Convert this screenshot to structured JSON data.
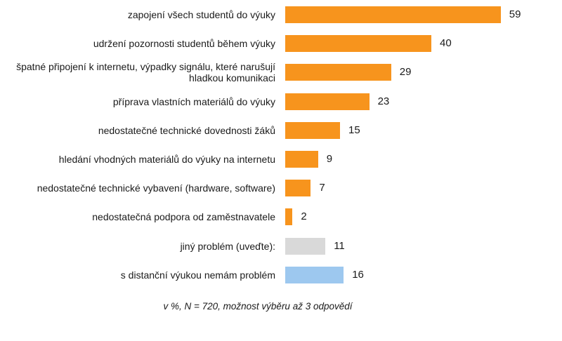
{
  "chart_data": {
    "type": "bar",
    "orientation": "horizontal",
    "categories": [
      "zapojení všech studentů do výuky",
      "udržení pozornosti studentů během výuky",
      "špatné připojení k internetu, výpadky signálu, které narušují hladkou komunikaci",
      "příprava vlastních materiálů do výuky",
      "nedostatečné technické dovednosti žáků",
      "hledání vhodných materiálů do výuky na internetu",
      "nedostatečné technické vybavení (hardware, software)",
      "nedostatečná podpora od zaměstnavatele",
      "jiný problém (uveďte):",
      "s distanční výukou nemám problém"
    ],
    "values": [
      59,
      40,
      29,
      23,
      15,
      9,
      7,
      2,
      11,
      16
    ],
    "value_labels": [
      "59",
      "40",
      "29",
      "23",
      "15",
      "9",
      "7",
      "2",
      "11",
      "16"
    ],
    "bar_colors": [
      "#f7941d",
      "#f7941d",
      "#f7941d",
      "#f7941d",
      "#f7941d",
      "#f7941d",
      "#f7941d",
      "#f7941d",
      "#d9d9d9",
      "#9dc8ef"
    ],
    "note": "v %, N = 720, možnost výběru až 3 odpovědí",
    "xlim": [
      0,
      59
    ],
    "grid": false,
    "legend": "none"
  }
}
